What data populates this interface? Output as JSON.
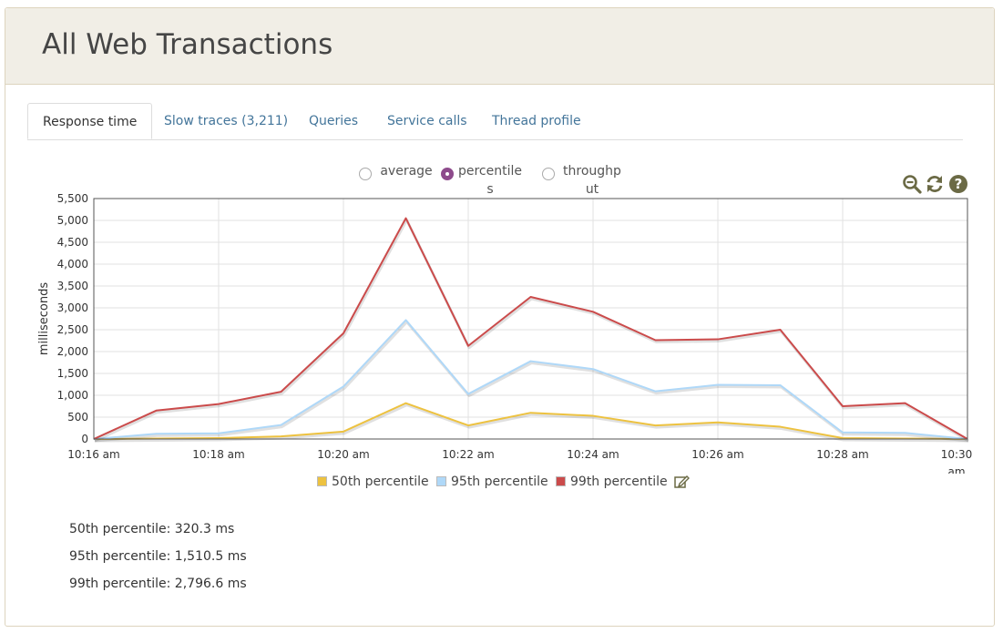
{
  "header": {
    "title": "All Web Transactions"
  },
  "tabs": [
    {
      "label": "Response time",
      "active": true
    },
    {
      "label": "Slow traces (3,211)",
      "active": false
    },
    {
      "label": "Queries",
      "active": false
    },
    {
      "label": "Service calls",
      "active": false
    },
    {
      "label": "Thread profile",
      "active": false
    }
  ],
  "chart_mode": {
    "options": [
      {
        "label": "average",
        "checked": false
      },
      {
        "label": "percentiles",
        "checked": true
      },
      {
        "label": "throughput",
        "checked": false
      }
    ]
  },
  "toolbar": {
    "icons": [
      "zoom-out-icon",
      "refresh-icon",
      "help-icon"
    ],
    "icon_color": "#6b6a45"
  },
  "chart_data": {
    "type": "line",
    "title": "",
    "xlabel": "",
    "ylabel": "milliseconds",
    "x": [
      "10:16 am",
      "10:17 am",
      "10:18 am",
      "10:19 am",
      "10:20 am",
      "10:21 am",
      "10:22 am",
      "10:23 am",
      "10:24 am",
      "10:25 am",
      "10:26 am",
      "10:27 am",
      "10:28 am",
      "10:29 am",
      "10:30 am"
    ],
    "x_tick_labels": [
      "10:16 am",
      "10:18 am",
      "10:20 am",
      "10:22 am",
      "10:24 am",
      "10:26 am",
      "10:28 am",
      "10:30 am"
    ],
    "y_ticks": [
      "0",
      "500",
      "1,000",
      "1,500",
      "2,000",
      "2,500",
      "3,000",
      "3,500",
      "4,000",
      "4,500",
      "5,000",
      "5,500"
    ],
    "ylim": [
      0,
      5500
    ],
    "grid": true,
    "legend": "bottom-center",
    "series": [
      {
        "name": "50th percentile",
        "color": "#edc240",
        "values": [
          0,
          10,
          20,
          60,
          170,
          820,
          310,
          600,
          530,
          310,
          380,
          280,
          20,
          10,
          0
        ]
      },
      {
        "name": "95th percentile",
        "color": "#afd8f8",
        "values": [
          0,
          120,
          130,
          320,
          1200,
          2720,
          1030,
          1780,
          1600,
          1090,
          1240,
          1230,
          150,
          140,
          0
        ]
      },
      {
        "name": "99th percentile",
        "color": "#cb4b4b",
        "values": [
          0,
          650,
          800,
          1080,
          2420,
          5050,
          2130,
          3250,
          2910,
          2260,
          2280,
          2500,
          750,
          820,
          0
        ]
      }
    ]
  },
  "summary": [
    {
      "label": "50th percentile: 320.3 ms"
    },
    {
      "label": "95th percentile: 1,510.5 ms"
    },
    {
      "label": "99th percentile: 2,796.6 ms"
    }
  ]
}
